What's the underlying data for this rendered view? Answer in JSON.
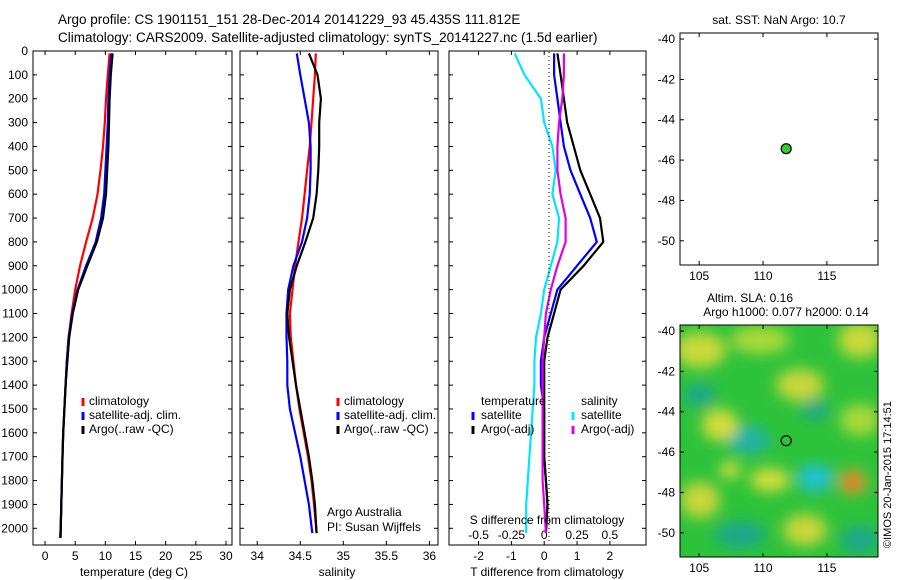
{
  "header": {
    "line1": "Argo profile: CS 1901151_151 28-Dec-2014 20141229_93 45.435S 111.812E",
    "line2": "Climatology: CARS2009. Satellite-adjusted climatology: synTS_20141227.nc (1.5d earlier)"
  },
  "colors": {
    "climatology": "#ff0000",
    "satellite": "#0000ff",
    "argo": "#000000",
    "salinity_satellite": "#00e5ff",
    "salinity_argo": "#e000e0",
    "position_marker": "#33cc33"
  },
  "chart_data": [
    {
      "id": "temperature",
      "type": "line",
      "xlabel": "temperature (deg C)",
      "ylabel": "",
      "xlim": [
        -2,
        31
      ],
      "ylim": [
        2070,
        0
      ],
      "xticks": [
        0,
        5,
        10,
        15,
        20,
        25,
        30
      ],
      "yticks": [
        0,
        100,
        200,
        300,
        400,
        500,
        600,
        700,
        800,
        900,
        1000,
        1100,
        1200,
        1300,
        1400,
        1500,
        1600,
        1700,
        1800,
        1900,
        2000
      ],
      "legend": [
        "climatology",
        "satellite-adj. clim.",
        "Argo(..raw -QC)"
      ],
      "series": [
        {
          "name": "climatology",
          "color": "#ff0000",
          "x": [
            10.7,
            10.4,
            10.1,
            9.9,
            9.6,
            9.2,
            8.7,
            7.9,
            6.8,
            5.8,
            5.0,
            4.4,
            3.9,
            3.6,
            3.4,
            3.2,
            3.0,
            2.9,
            2.8,
            2.7,
            2.6,
            2.5
          ],
          "y": [
            10,
            100,
            200,
            300,
            400,
            500,
            600,
            700,
            800,
            900,
            1000,
            1100,
            1200,
            1300,
            1400,
            1500,
            1600,
            1700,
            1800,
            1900,
            2000,
            2040
          ]
        },
        {
          "name": "satellite-adj. clim.",
          "color": "#0000ff",
          "x": [
            11.0,
            10.7,
            10.5,
            10.4,
            10.2,
            10.0,
            9.8,
            9.3,
            8.4,
            6.8,
            5.4,
            4.5,
            3.9,
            3.6,
            3.4,
            3.2,
            3.0,
            2.9,
            2.8,
            2.7,
            2.6,
            2.5
          ],
          "y": [
            10,
            100,
            200,
            300,
            400,
            500,
            600,
            700,
            800,
            900,
            1000,
            1100,
            1200,
            1300,
            1400,
            1500,
            1600,
            1700,
            1800,
            1900,
            2000,
            2040
          ]
        },
        {
          "name": "Argo(..raw -QC)",
          "color": "#000000",
          "x": [
            11.2,
            10.9,
            10.7,
            10.6,
            10.5,
            10.3,
            10.1,
            9.6,
            8.6,
            7.0,
            5.5,
            4.6,
            4.0,
            3.7,
            3.4,
            3.2,
            3.0,
            2.9,
            2.8,
            2.7,
            2.6,
            2.6
          ],
          "y": [
            10,
            100,
            200,
            300,
            400,
            500,
            600,
            700,
            800,
            900,
            1000,
            1100,
            1200,
            1300,
            1400,
            1500,
            1600,
            1700,
            1800,
            1900,
            2000,
            2040
          ]
        }
      ]
    },
    {
      "id": "salinity",
      "type": "line",
      "xlabel": "salinity",
      "ylabel": "",
      "xlim": [
        33.8,
        36.1
      ],
      "ylim": [
        2070,
        0
      ],
      "xticks": [
        34,
        34.5,
        35,
        35.5,
        36
      ],
      "legend": [
        "climatology",
        "satellite-adj. clim.",
        "Argo(..raw -QC)"
      ],
      "annotation": {
        "line1": "Argo Australia",
        "line2": "PI: Susan Wijffels"
      },
      "series": [
        {
          "name": "climatology",
          "color": "#ff0000",
          "x": [
            34.68,
            34.67,
            34.65,
            34.63,
            34.61,
            34.58,
            34.55,
            34.52,
            34.48,
            34.44,
            34.41,
            34.38,
            34.39,
            34.42,
            34.45,
            34.49,
            34.54,
            34.59,
            34.63,
            34.66,
            34.69
          ],
          "y": [
            10,
            100,
            200,
            300,
            400,
            500,
            600,
            700,
            800,
            900,
            1000,
            1100,
            1200,
            1300,
            1400,
            1500,
            1600,
            1700,
            1800,
            1900,
            2020
          ]
        },
        {
          "name": "satellite-adj. clim.",
          "color": "#0000ff",
          "x": [
            34.46,
            34.5,
            34.55,
            34.6,
            34.62,
            34.62,
            34.61,
            34.58,
            34.52,
            34.42,
            34.36,
            34.34,
            34.34,
            34.35,
            34.35,
            34.38,
            34.44,
            34.5,
            34.55,
            34.6,
            34.64
          ],
          "y": [
            10,
            100,
            200,
            300,
            400,
            500,
            600,
            700,
            800,
            900,
            1000,
            1100,
            1200,
            1300,
            1400,
            1500,
            1600,
            1700,
            1800,
            1900,
            2020
          ]
        },
        {
          "name": "Argo(..raw -QC)",
          "color": "#000000",
          "x": [
            34.6,
            34.7,
            34.74,
            34.72,
            34.72,
            34.71,
            34.69,
            34.65,
            34.56,
            34.46,
            34.38,
            34.35,
            34.37,
            34.41,
            34.45,
            34.5,
            34.55,
            34.6,
            34.64,
            34.67,
            34.69
          ],
          "y": [
            10,
            100,
            200,
            300,
            400,
            500,
            600,
            700,
            800,
            900,
            1000,
            1100,
            1200,
            1300,
            1400,
            1500,
            1600,
            1700,
            1800,
            1900,
            2020
          ]
        }
      ]
    },
    {
      "id": "difference",
      "type": "line",
      "xlabel": "T difference from climatology",
      "x2label": "S difference from climatology",
      "xlim": [
        -2.9,
        3.1
      ],
      "ylim": [
        2070,
        0
      ],
      "xticks": [
        -2,
        -1,
        0,
        1,
        2
      ],
      "x2ticks": [
        "-0.5",
        "-0.25",
        "0",
        "0.25",
        "0.5"
      ],
      "legend_groups": {
        "temperature": "temperature",
        "salinity": "salinity"
      },
      "legend": [
        "satellite",
        "Argo(-adj)",
        "satellite",
        "Argo(-adj)"
      ],
      "series": [
        {
          "name": "temperature satellite",
          "color": "#0000ff",
          "x": [
            0.3,
            0.3,
            0.4,
            0.5,
            0.6,
            0.8,
            1.1,
            1.4,
            1.6,
            1.0,
            0.4,
            0.2,
            0.0,
            -0.1,
            -0.1,
            0.0,
            0.0,
            0.0,
            0.05,
            0.1,
            0.05
          ],
          "y": [
            10,
            100,
            200,
            300,
            400,
            500,
            600,
            700,
            800,
            900,
            1000,
            1100,
            1200,
            1300,
            1400,
            1500,
            1600,
            1700,
            1800,
            1900,
            2020
          ]
        },
        {
          "name": "temperature Argo(-adj)",
          "color": "#000000",
          "x": [
            0.4,
            0.5,
            0.6,
            0.7,
            0.9,
            1.1,
            1.4,
            1.7,
            1.8,
            1.2,
            0.5,
            0.3,
            0.1,
            0.0,
            0.0,
            0.0,
            0.0,
            0.0,
            0.05,
            0.1,
            0.05
          ],
          "y": [
            10,
            100,
            200,
            300,
            400,
            500,
            600,
            700,
            800,
            900,
            1000,
            1100,
            1200,
            1300,
            1400,
            1500,
            1600,
            1700,
            1800,
            1900,
            2020
          ]
        },
        {
          "name": "salinity satellite",
          "color": "#00e5ff",
          "x": [
            -0.9,
            -0.6,
            -0.1,
            0.0,
            0.25,
            0.35,
            0.25,
            0.45,
            0.4,
            0.2,
            0.0,
            -0.1,
            -0.25,
            -0.3,
            -0.3,
            -0.35,
            -0.4,
            -0.45,
            -0.5,
            -0.55,
            -0.55
          ],
          "y": [
            10,
            100,
            200,
            300,
            400,
            500,
            600,
            700,
            800,
            900,
            1000,
            1100,
            1200,
            1300,
            1400,
            1500,
            1600,
            1700,
            1800,
            1900,
            2020
          ]
        },
        {
          "name": "salinity Argo(-adj)",
          "color": "#e000e0",
          "x": [
            0.6,
            0.6,
            0.55,
            0.45,
            0.4,
            0.4,
            0.5,
            0.65,
            0.65,
            0.4,
            0.2,
            0.05,
            0.0,
            -0.05,
            -0.05,
            -0.05,
            -0.05,
            -0.05,
            -0.05,
            0.0,
            0.05
          ],
          "y": [
            10,
            100,
            200,
            300,
            400,
            500,
            600,
            700,
            800,
            900,
            1000,
            1100,
            1200,
            1300,
            1400,
            1500,
            1600,
            1700,
            1800,
            1900,
            2020
          ]
        }
      ]
    },
    {
      "id": "sst_map",
      "type": "scatter",
      "title": "sat. SST: NaN Argo: 10.7",
      "xlim": [
        103.5,
        119
      ],
      "ylim": [
        -51.2,
        -39.7
      ],
      "xticks": [
        105,
        110,
        115
      ],
      "yticks": [
        -40,
        -42,
        -44,
        -46,
        -48,
        -50
      ],
      "point": {
        "x": 111.812,
        "y": -45.435
      }
    },
    {
      "id": "sla_map",
      "type": "heatmap",
      "title_line1": "Altim. SLA: 0.16",
      "title_line2": "Argo h1000: 0.077 h2000: 0.14",
      "xlim": [
        103.5,
        119
      ],
      "ylim": [
        -51.2,
        -39.7
      ],
      "xticks": [
        105,
        110,
        115
      ],
      "yticks": [
        -40,
        -42,
        -44,
        -46,
        -48,
        -50
      ],
      "point": {
        "x": 111.812,
        "y": -45.435
      }
    }
  ],
  "watermark": "©IMOS 20-Jan-2015 17:14:51"
}
